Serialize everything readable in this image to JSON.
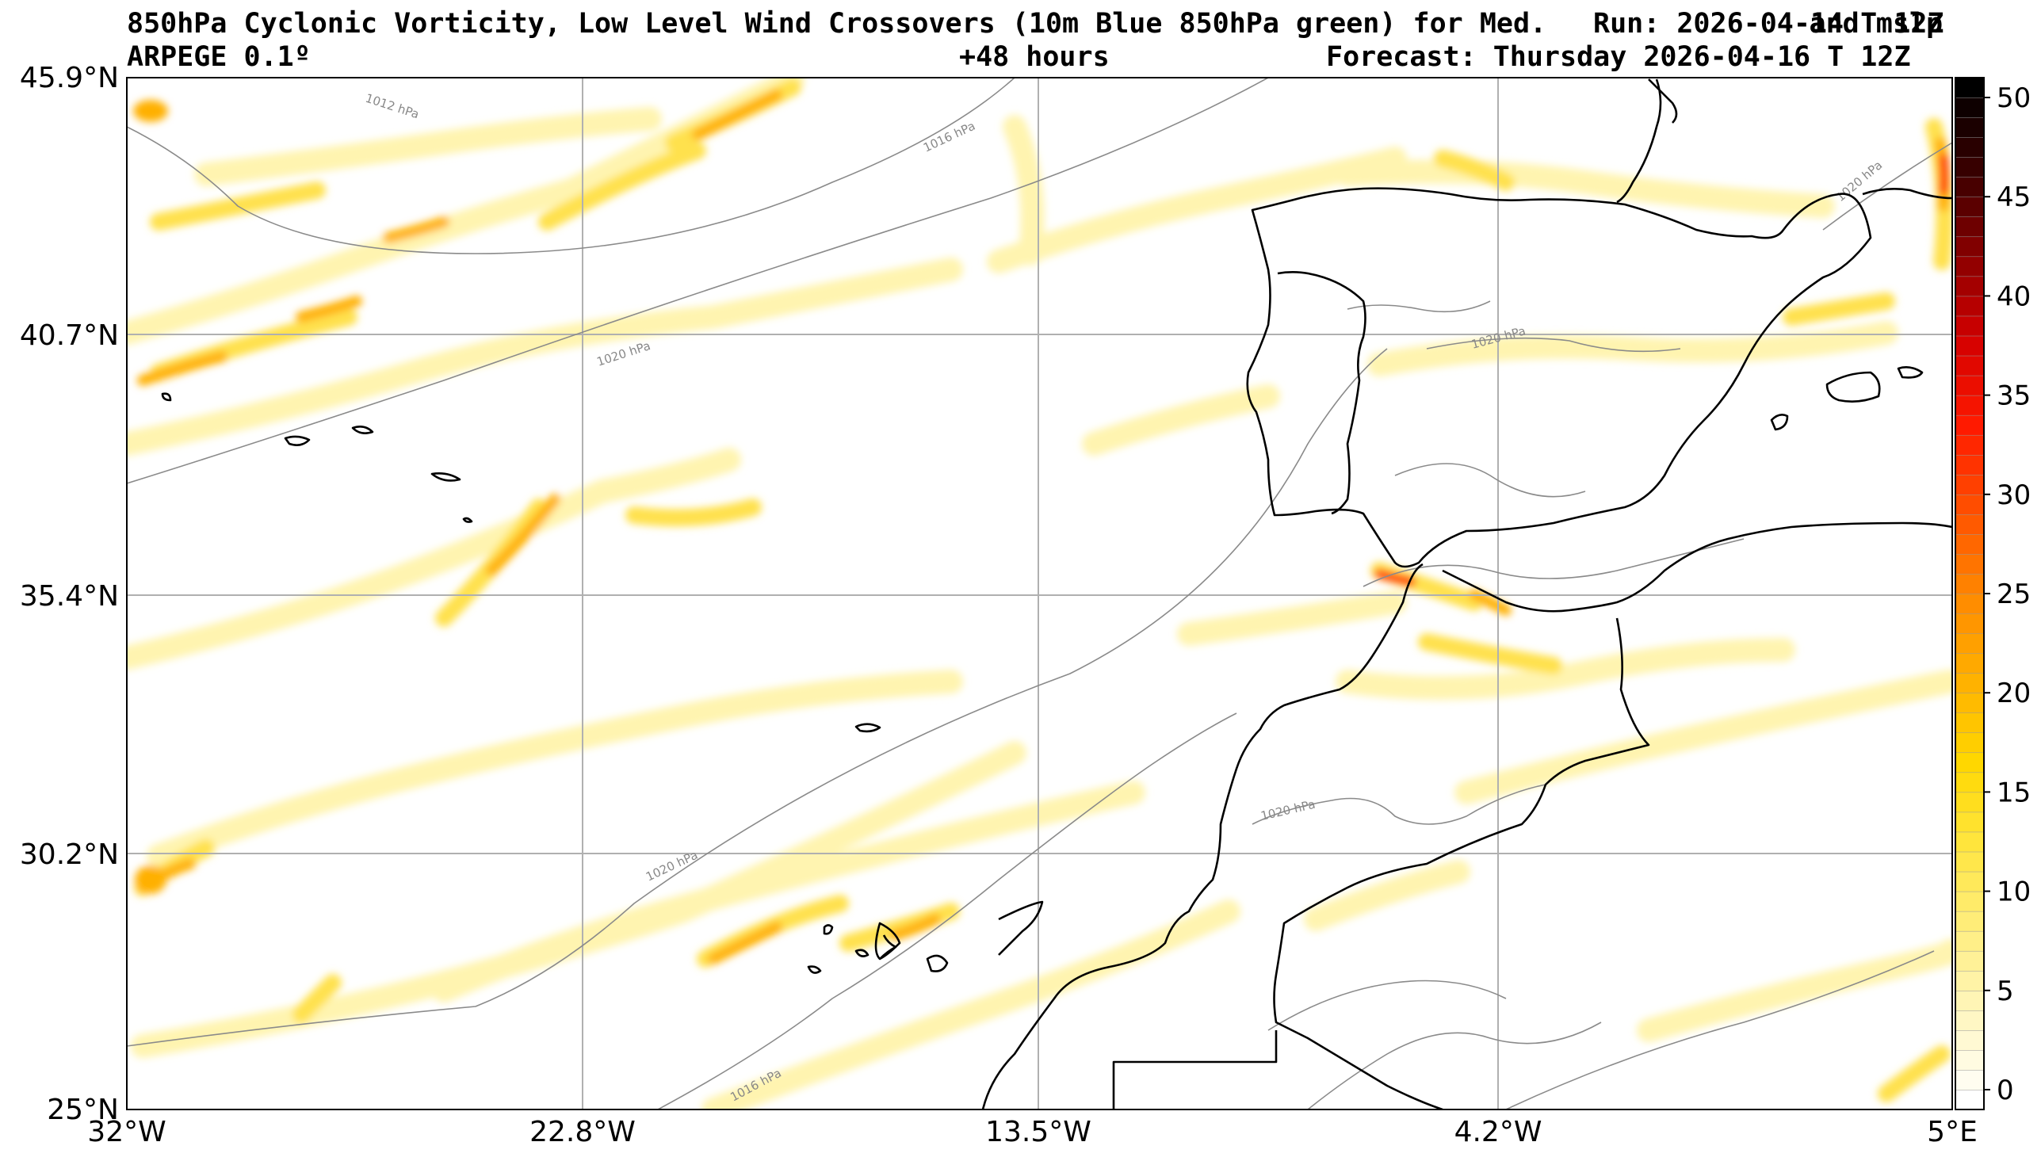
{
  "header": {
    "title_line1": "850hPa Cyclonic Vorticity, Low Level Wind Crossovers (10m Blue 850hPa green) for Med.",
    "run_info": "Run: 2026-04-14 T 12Z",
    "title_suffix": "and mslp",
    "model": "ARPEGE 0.1º",
    "lead_time": "+48 hours",
    "valid_time": "Forecast: Thursday 2026-04-16 T 12Z"
  },
  "axes": {
    "lat_labels": [
      "45.9°N",
      "40.7°N",
      "35.4°N",
      "30.2°N",
      "25°N"
    ],
    "lon_labels": [
      "32°W",
      "22.8°W",
      "13.5°W",
      "4.2°W",
      "5°E"
    ],
    "lat_values": [
      45.9,
      40.7,
      35.4,
      30.2,
      25.0
    ],
    "lon_values": [
      -32,
      -22.8,
      -13.5,
      -4.2,
      5.0
    ]
  },
  "colorbar": {
    "labels": [
      "50",
      "45",
      "40",
      "35",
      "30",
      "25",
      "20",
      "15",
      "10",
      "5",
      "0"
    ],
    "min": -1,
    "max": 51,
    "colors": [
      "#ffffff",
      "#fff7c0",
      "#ffee80",
      "#ffe640",
      "#ffd700",
      "#ffb000",
      "#ff8800",
      "#ff5000",
      "#ff1a00",
      "#d40000",
      "#8a0000",
      "#3a0000",
      "#000000"
    ]
  },
  "isobars": [
    {
      "label": "1012 hPa"
    },
    {
      "label": "1016 hPa"
    },
    {
      "label": "1020 hPa"
    },
    {
      "label": "1020 hPa"
    },
    {
      "label": "1020 hPa"
    },
    {
      "label": "1020 hPa"
    },
    {
      "label": "1016 hPa"
    },
    {
      "label": "1020 hPa"
    }
  ]
}
